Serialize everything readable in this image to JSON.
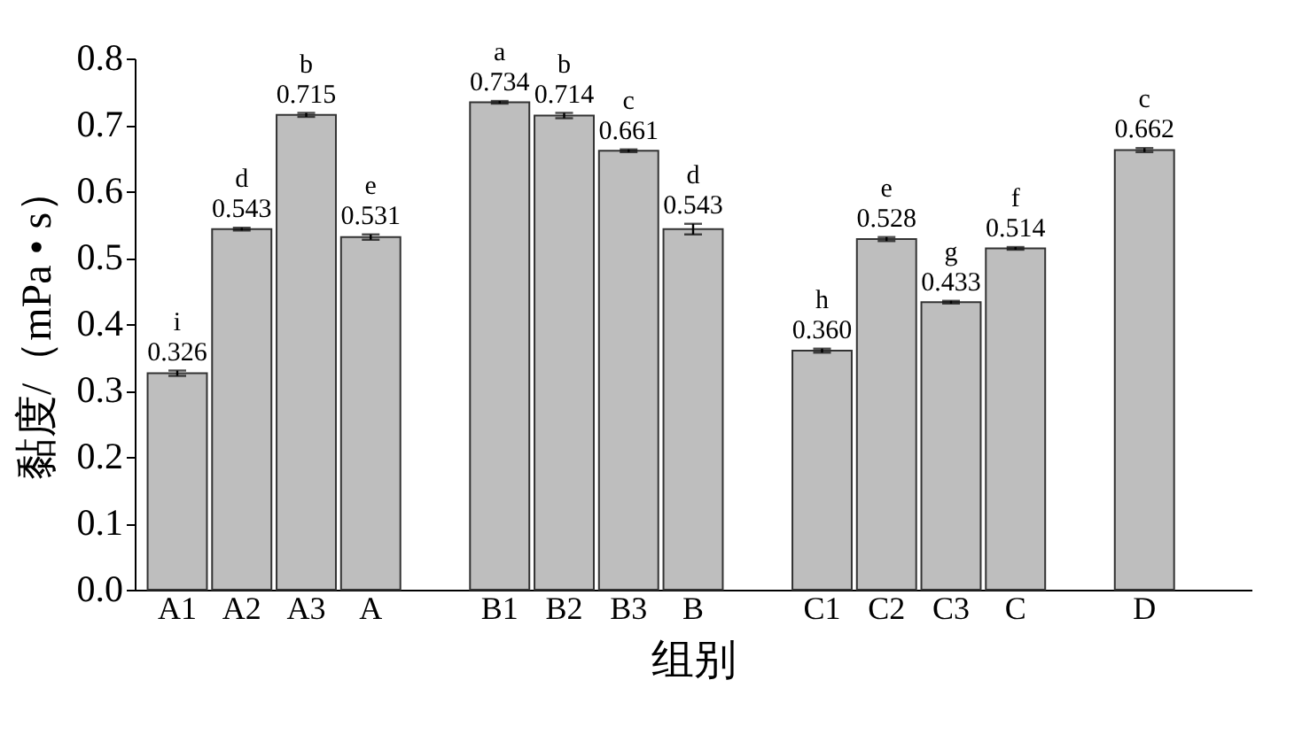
{
  "chart_data": {
    "type": "bar",
    "xlabel": "组别",
    "ylabel": "黏度/（mPa • s）",
    "categories": [
      "A1",
      "A2",
      "A3",
      "A",
      null,
      "B1",
      "B2",
      "B3",
      "B",
      null,
      "C1",
      "C2",
      "C3",
      "C",
      null,
      "D",
      null
    ],
    "values": [
      0.326,
      0.543,
      0.715,
      0.531,
      null,
      0.734,
      0.714,
      0.661,
      0.543,
      null,
      0.36,
      0.528,
      0.433,
      0.514,
      null,
      0.662,
      null
    ],
    "value_labels": [
      "0.326",
      "0.543",
      "0.715",
      "0.531",
      null,
      "0.734",
      "0.714",
      "0.661",
      "0.543",
      null,
      "0.360",
      "0.528",
      "0.433",
      "0.514",
      null,
      "0.662",
      null
    ],
    "errors": [
      0.004,
      0.002,
      0.003,
      0.004,
      null,
      0.002,
      0.004,
      0.002,
      0.008,
      null,
      0.003,
      0.003,
      0.002,
      0.002,
      null,
      0.003,
      null
    ],
    "color": "#bebebe",
    "ylim": [
      0,
      0.8
    ],
    "yticks": [
      {
        "value": 0,
        "label": "0.0"
      },
      0.1,
      0.2,
      0.3,
      0.4,
      0.5,
      0.6,
      0.7,
      0.8
    ],
    "annotations": [
      {
        "text": "i",
        "x": "A1",
        "y": 0.326
      },
      {
        "text": "d",
        "x": "A2",
        "y": 0.543
      },
      {
        "text": "b",
        "x": "A3",
        "y": 0.715
      },
      {
        "text": "e",
        "x": "A",
        "y": 0.531
      },
      {
        "text": "a",
        "x": "B1",
        "y": 0.734
      },
      {
        "text": "b",
        "x": "B2",
        "y": 0.714
      },
      {
        "text": "c",
        "x": "B3",
        "y": 0.661
      },
      {
        "text": "d",
        "x": "B",
        "y": 0.543
      },
      {
        "text": "h",
        "x": "C1",
        "y": 0.36
      },
      {
        "text": "e",
        "x": "C2",
        "y": 0.528
      },
      {
        "text": "g",
        "x": "C3",
        "y": 0.433
      },
      {
        "text": "f",
        "x": "C",
        "y": 0.514
      },
      {
        "text": "c",
        "x": "D",
        "y": 0.662
      }
    ],
    "grid": false
  }
}
